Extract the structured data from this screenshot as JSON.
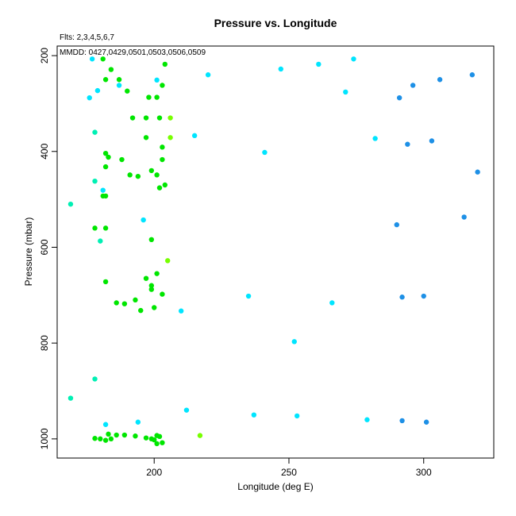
{
  "chart_data": {
    "type": "scatter",
    "title": "Pressure vs. Longitude",
    "annotations": [
      "Flts: 2,3,4,5,6,7",
      "MMDD: 0427,0429,0501,0503,0506,0509"
    ],
    "xlabel": "Longitude (deg E)",
    "ylabel": "Pressure (mbar)",
    "xlim": [
      164,
      326
    ],
    "ylim": [
      1040,
      180
    ],
    "y_axis_inverted": true,
    "x_ticks": [
      200,
      250,
      300
    ],
    "y_ticks": [
      200,
      400,
      600,
      800,
      1000
    ],
    "grid": false,
    "legend": "none",
    "colors": {
      "blue": "#1E90E6",
      "cyan": "#00E5FF",
      "aqua_green": "#00F0B4",
      "green": "#00E600",
      "bright_green": "#22FF22",
      "yellow_green": "#77FF00"
    },
    "series": [
      {
        "color": "#1E90E6",
        "points": [
          [
            318,
            240
          ],
          [
            306,
            250
          ],
          [
            296,
            262
          ],
          [
            291,
            288
          ],
          [
            303,
            378
          ],
          [
            294,
            385
          ],
          [
            320,
            443
          ],
          [
            315,
            537
          ],
          [
            290,
            553
          ],
          [
            300,
            702
          ],
          [
            292,
            704
          ],
          [
            292,
            962
          ],
          [
            301,
            965
          ]
        ]
      },
      {
        "color": "#00E5FF",
        "points": [
          [
            177,
            207
          ],
          [
            274,
            207
          ],
          [
            261,
            218
          ],
          [
            247,
            228
          ],
          [
            220,
            240
          ],
          [
            201,
            251
          ],
          [
            187,
            262
          ],
          [
            179,
            273
          ],
          [
            271,
            276
          ],
          [
            176,
            288
          ],
          [
            215,
            367
          ],
          [
            282,
            373
          ],
          [
            241,
            402
          ],
          [
            181,
            481
          ],
          [
            196,
            543
          ],
          [
            235,
            702
          ],
          [
            266,
            716
          ],
          [
            210,
            733
          ],
          [
            252,
            797
          ],
          [
            212,
            940
          ],
          [
            237,
            950
          ],
          [
            253,
            952
          ],
          [
            279,
            960
          ],
          [
            194,
            965
          ],
          [
            182,
            970
          ]
        ]
      },
      {
        "color": "#00F0B4",
        "points": [
          [
            178,
            360
          ],
          [
            178,
            462
          ],
          [
            169,
            510
          ],
          [
            180,
            587
          ],
          [
            178,
            875
          ],
          [
            169,
            915
          ]
        ]
      },
      {
        "color": "#00E600",
        "points": [
          [
            181,
            207
          ],
          [
            204,
            218
          ],
          [
            184,
            229
          ],
          [
            182,
            250
          ],
          [
            187,
            250
          ],
          [
            203,
            262
          ],
          [
            190,
            274
          ],
          [
            198,
            287
          ],
          [
            201,
            287
          ],
          [
            192,
            330
          ],
          [
            197,
            330
          ],
          [
            202,
            330
          ],
          [
            197,
            371
          ],
          [
            203,
            391
          ],
          [
            182,
            404
          ],
          [
            183,
            412
          ],
          [
            188,
            417
          ],
          [
            203,
            417
          ],
          [
            182,
            432
          ],
          [
            199,
            440
          ],
          [
            191,
            449
          ],
          [
            201,
            449
          ],
          [
            194,
            452
          ],
          [
            204,
            470
          ],
          [
            202,
            476
          ],
          [
            181,
            493
          ],
          [
            182,
            493
          ],
          [
            178,
            560
          ],
          [
            182,
            560
          ],
          [
            199,
            584
          ],
          [
            197,
            665
          ],
          [
            201,
            655
          ],
          [
            182,
            672
          ],
          [
            199,
            680
          ],
          [
            199,
            688
          ],
          [
            203,
            698
          ],
          [
            193,
            710
          ],
          [
            186,
            716
          ],
          [
            189,
            718
          ],
          [
            200,
            726
          ],
          [
            195,
            732
          ],
          [
            183,
            990
          ],
          [
            186,
            992
          ],
          [
            189,
            992
          ],
          [
            193,
            994
          ],
          [
            201,
            993
          ],
          [
            202,
            995
          ],
          [
            178,
            999
          ],
          [
            180,
            1000
          ],
          [
            182,
            1003
          ],
          [
            184,
            1000
          ],
          [
            197,
            998
          ],
          [
            199,
            1000
          ],
          [
            200,
            1002
          ],
          [
            201,
            1010
          ],
          [
            203,
            1008
          ]
        ]
      },
      {
        "color": "#77FF00",
        "points": [
          [
            206,
            330
          ],
          [
            206,
            371
          ],
          [
            205,
            628
          ],
          [
            217,
            993
          ]
        ]
      }
    ]
  }
}
